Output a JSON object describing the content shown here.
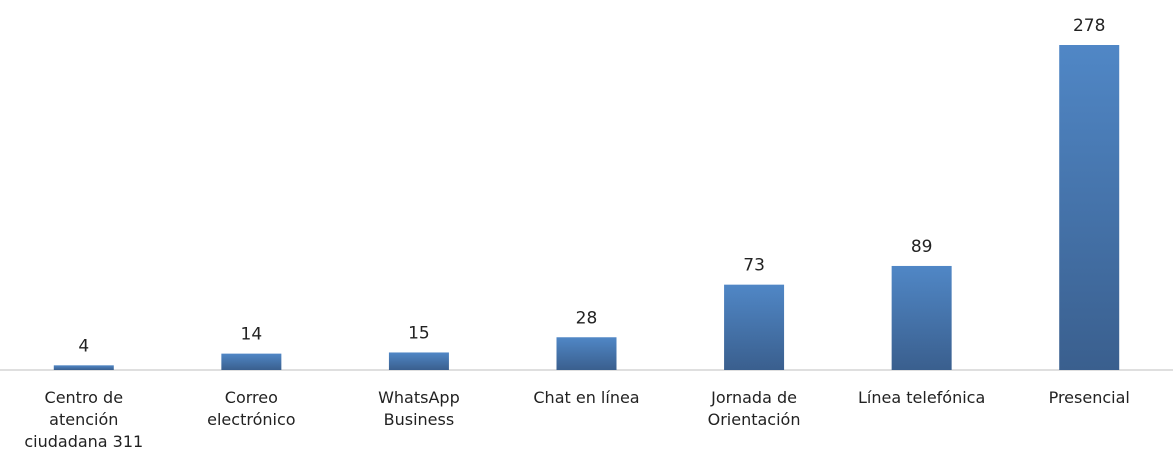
{
  "chart_data": {
    "type": "bar",
    "categories": [
      "Centro de atención ciudadana 311",
      "Correo electrónico",
      "WhatsApp Business",
      "Chat en línea",
      "Jornada de Orientación",
      "Línea telefónica",
      "Presencial"
    ],
    "values": [
      4,
      14,
      15,
      28,
      73,
      89,
      278
    ],
    "color": "#4a7ab5"
  }
}
